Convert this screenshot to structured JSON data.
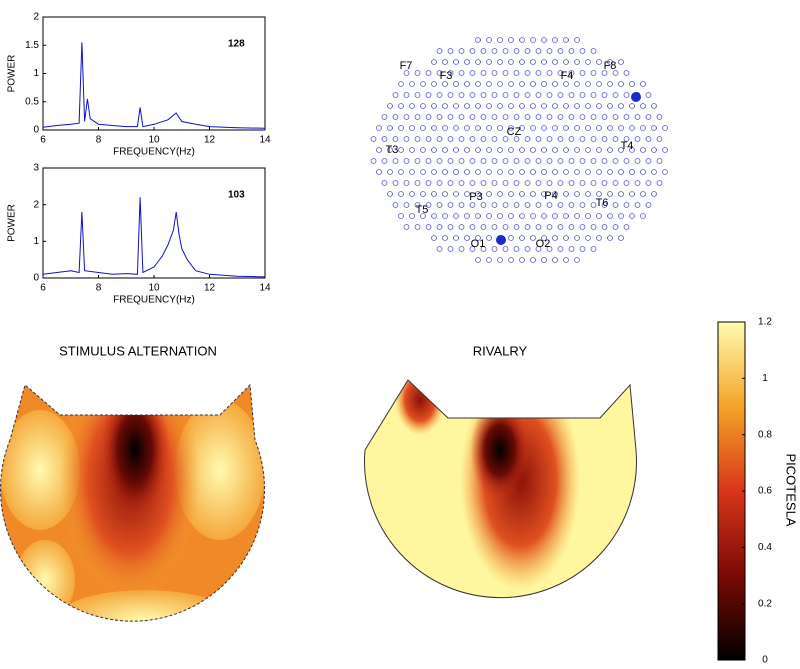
{
  "chart_data": [
    {
      "type": "line",
      "label": "128",
      "xlabel": "FREQUENCY(Hz)",
      "ylabel": "POWER",
      "color": "#1010c8",
      "xlim": [
        6,
        14
      ],
      "ylim": [
        0,
        2
      ],
      "xticks": [
        6,
        8,
        10,
        12,
        14
      ],
      "yticks": [
        0,
        0.5,
        1,
        1.5,
        2
      ],
      "x": [
        6,
        6.5,
        7,
        7.3,
        7.4,
        7.5,
        7.6,
        7.7,
        8,
        8.5,
        9,
        9.4,
        9.5,
        9.6,
        10,
        10.5,
        10.8,
        11,
        11.5,
        12,
        13,
        14
      ],
      "values": [
        0.05,
        0.08,
        0.1,
        0.12,
        1.55,
        0.15,
        0.55,
        0.2,
        0.1,
        0.08,
        0.06,
        0.06,
        0.4,
        0.06,
        0.1,
        0.18,
        0.3,
        0.15,
        0.1,
        0.06,
        0.04,
        0.03
      ]
    },
    {
      "type": "line",
      "label": "103",
      "xlabel": "FREQUENCY(Hz)",
      "ylabel": "POWER",
      "color": "#1010c8",
      "xlim": [
        6,
        14
      ],
      "ylim": [
        0,
        3
      ],
      "xticks": [
        6,
        8,
        10,
        12,
        14
      ],
      "yticks": [
        0,
        1,
        2,
        3
      ],
      "x": [
        6,
        6.5,
        7,
        7.3,
        7.4,
        7.5,
        8,
        8.5,
        9,
        9.4,
        9.5,
        9.6,
        10,
        10.3,
        10.5,
        10.6,
        10.7,
        10.8,
        10.9,
        11,
        11.2,
        11.5,
        12,
        13,
        14
      ],
      "values": [
        0.1,
        0.15,
        0.2,
        0.15,
        1.8,
        0.2,
        0.15,
        0.1,
        0.12,
        0.1,
        2.2,
        0.15,
        0.3,
        0.6,
        0.9,
        1.1,
        1.3,
        1.8,
        1.2,
        0.8,
        0.5,
        0.2,
        0.1,
        0.05,
        0.03
      ]
    },
    {
      "type": "colorbar",
      "title": "PICOTESLA",
      "ylim": [
        0,
        1.2
      ],
      "yticks": [
        0,
        0.2,
        0.4,
        0.6,
        0.8,
        1,
        1.2
      ],
      "colors": [
        "#000000",
        "#7a0a05",
        "#d8361a",
        "#f4a428",
        "#fffcb0"
      ]
    }
  ],
  "sensor_labels": [
    "F7",
    "F3",
    "F4",
    "F8",
    "CZ",
    "T3",
    "T4",
    "P3",
    "P4",
    "T5",
    "T6",
    "O1",
    "O2"
  ],
  "topomap_titles": [
    "STIMULUS ALTERNATION",
    "RIVALRY"
  ]
}
